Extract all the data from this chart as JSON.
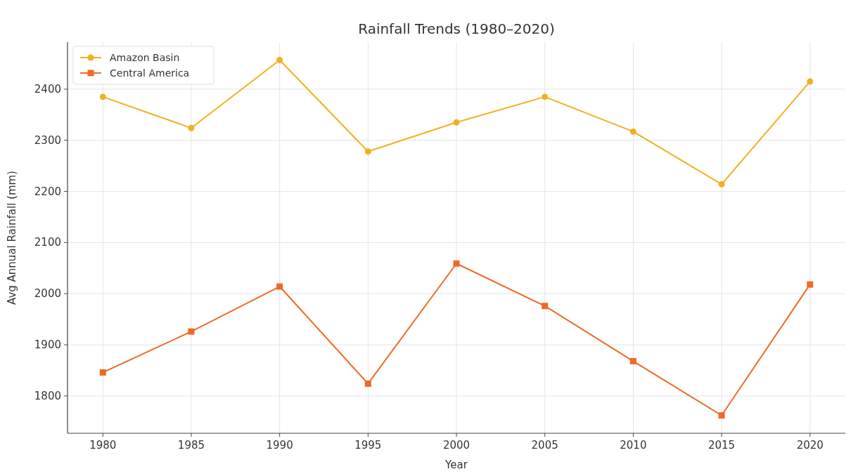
{
  "chart_data": {
    "type": "line",
    "title": "Rainfall Trends (1980–2020)",
    "xlabel": "Year",
    "ylabel": "Avg Annual Rainfall (mm)",
    "x": [
      1980,
      1985,
      1990,
      1995,
      2000,
      2005,
      2010,
      2015,
      2020
    ],
    "series": [
      {
        "name": "Amazon Basin",
        "color": "#f2b01e",
        "marker": "circle",
        "values": [
          2385,
          2324,
          2457,
          2278,
          2335,
          2385,
          2317,
          2214,
          2415
        ]
      },
      {
        "name": "Central America",
        "color": "#ee6a26",
        "marker": "square",
        "values": [
          1846,
          1926,
          2014,
          1824,
          2059,
          1976,
          1868,
          1762,
          2018
        ]
      }
    ],
    "xlim": [
      1978,
      2022
    ],
    "xticks": [
      1980,
      1985,
      1990,
      1995,
      2000,
      2005,
      2010,
      2015,
      2020
    ],
    "ylim": [
      1727,
      2492
    ],
    "yticks": [
      1800,
      1900,
      2000,
      2100,
      2200,
      2300,
      2400
    ],
    "grid": true,
    "legend": "top left",
    "line_style": "solid"
  }
}
